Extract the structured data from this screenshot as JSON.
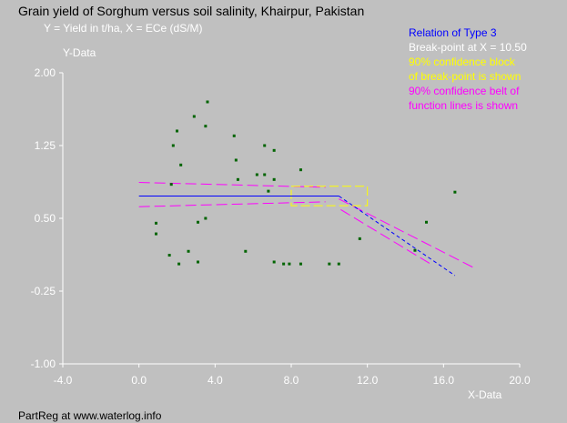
{
  "title": "Grain yield of Sorghum versus soil salinity, Khairpur, Pakistan",
  "subtitle": "Y = Yield in t/ha, X = ECe (dS/M)",
  "ylabel": "Y-Data",
  "xlabel": "X-Data",
  "footer": "PartReg at www.waterlog.info",
  "legend": [
    {
      "text": "Relation of Type 3",
      "color": "#0000ff"
    },
    {
      "text": "Break-point at X = 10.50",
      "color": "#ffffff"
    },
    {
      "text": "90% confidence block",
      "color": "#ffff00"
    },
    {
      "text": "of break-point is shown",
      "color": "#ffff00"
    },
    {
      "text": "90% confidence belt of",
      "color": "#ff00ff"
    },
    {
      "text": "function lines is shown",
      "color": "#ff00ff"
    }
  ],
  "colors": {
    "background": "#c0c0c0",
    "axis": "#ffffff",
    "points": "#006400",
    "fit": "#0000ff",
    "belt": "#ff00ff",
    "block": "#ffff00"
  },
  "chart_data": {
    "type": "scatter",
    "xlim": [
      -4.0,
      20.0
    ],
    "ylim": [
      -1.0,
      2.0
    ],
    "xticks": [
      "-4.0",
      "0.0",
      "4.0",
      "8.0",
      "12.0",
      "16.0",
      "20.0"
    ],
    "yticks": [
      "2.00",
      "1.25",
      "0.50",
      "-0.25",
      "-1.00"
    ],
    "points": [
      [
        0.9,
        0.45
      ],
      [
        0.9,
        0.34
      ],
      [
        1.6,
        0.12
      ],
      [
        1.7,
        0.85
      ],
      [
        1.8,
        1.25
      ],
      [
        2.0,
        1.4
      ],
      [
        2.1,
        0.03
      ],
      [
        2.2,
        1.05
      ],
      [
        2.6,
        0.16
      ],
      [
        2.9,
        1.55
      ],
      [
        3.1,
        0.05
      ],
      [
        3.1,
        0.46
      ],
      [
        3.5,
        1.45
      ],
      [
        3.5,
        0.5
      ],
      [
        3.6,
        1.7
      ],
      [
        5.0,
        1.35
      ],
      [
        5.1,
        1.1
      ],
      [
        5.2,
        0.9
      ],
      [
        5.6,
        0.16
      ],
      [
        6.2,
        0.95
      ],
      [
        6.6,
        1.25
      ],
      [
        6.6,
        0.95
      ],
      [
        6.8,
        0.78
      ],
      [
        7.1,
        0.05
      ],
      [
        7.1,
        0.9
      ],
      [
        7.1,
        1.2
      ],
      [
        7.6,
        0.03
      ],
      [
        7.9,
        0.03
      ],
      [
        8.5,
        0.03
      ],
      [
        8.5,
        1.0
      ],
      [
        10.0,
        0.03
      ],
      [
        10.5,
        0.03
      ],
      [
        11.6,
        0.29
      ],
      [
        14.5,
        0.17
      ],
      [
        15.1,
        0.46
      ],
      [
        16.6,
        0.77
      ]
    ],
    "fit": {
      "color": "#0000ff",
      "breakpoint_x": 10.5,
      "segments": [
        {
          "x": [
            0.0,
            10.5
          ],
          "y": [
            0.73,
            0.73
          ],
          "style": "solid"
        },
        {
          "x": [
            10.5,
            16.6
          ],
          "y": [
            0.73,
            -0.09
          ],
          "style": "dashed"
        }
      ]
    },
    "confidence_belt": {
      "color": "#ff00ff",
      "lines": [
        {
          "x": [
            0.0,
            9.8
          ],
          "y": [
            0.87,
            0.82
          ]
        },
        {
          "x": [
            0.0,
            9.8
          ],
          "y": [
            0.62,
            0.67
          ]
        },
        {
          "x": [
            10.5,
            17.7
          ],
          "y": [
            0.7,
            -0.02
          ]
        },
        {
          "x": [
            10.6,
            15.4
          ],
          "y": [
            0.59,
            0.02
          ]
        }
      ]
    },
    "confidence_block": {
      "color": "#ffff00",
      "x": [
        8.0,
        12.0
      ],
      "y": [
        0.63,
        0.83
      ]
    }
  }
}
